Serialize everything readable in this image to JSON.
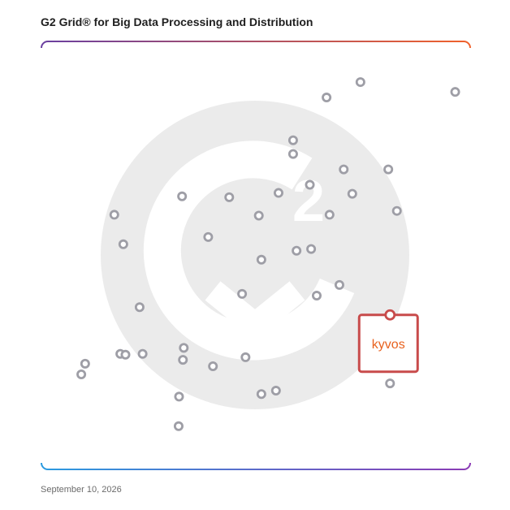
{
  "header": {
    "title": "G2 Grid® for Big Data Processing and Distribution"
  },
  "footer": {
    "date": "September 10, 2026"
  },
  "colors": {
    "frame_top_left": "#6a3fa0",
    "frame_top_right": "#f0612b",
    "frame_bottom_left": "#2b9be0",
    "frame_bottom_right": "#8b3bb5",
    "watermark": "#ebebeb",
    "dot": "#9e9ea6",
    "highlight": "#c84b4b",
    "highlight_text": "#e8621f"
  },
  "highlight": {
    "label": "kyvos"
  },
  "chart_data": {
    "type": "scatter",
    "title": "G2 Grid® for Big Data Processing and Distribution",
    "xlabel": "",
    "ylabel": "",
    "xlim": [
      0,
      100
    ],
    "ylim": [
      0,
      100
    ],
    "grid": false,
    "quadrant_divider": {
      "x": 50,
      "y": 50
    },
    "series": [
      {
        "points": [
          {
            "x": 66.5,
            "y": 86.9
          },
          {
            "x": 74.4,
            "y": 90.5
          },
          {
            "x": 96.5,
            "y": 88.2
          },
          {
            "x": 58.7,
            "y": 76.9
          },
          {
            "x": 58.7,
            "y": 73.7
          },
          {
            "x": 70.5,
            "y": 70.1
          },
          {
            "x": 80.9,
            "y": 70.1
          },
          {
            "x": 62.6,
            "y": 66.5
          },
          {
            "x": 55.3,
            "y": 64.6
          },
          {
            "x": 72.5,
            "y": 64.4
          },
          {
            "x": 82.9,
            "y": 60.4
          },
          {
            "x": 67.2,
            "y": 59.5
          },
          {
            "x": 50.7,
            "y": 59.3
          },
          {
            "x": 32.8,
            "y": 63.8
          },
          {
            "x": 43.8,
            "y": 63.6
          },
          {
            "x": 17.0,
            "y": 59.5
          },
          {
            "x": 19.1,
            "y": 52.6
          },
          {
            "x": 38.9,
            "y": 54.3
          },
          {
            "x": 62.9,
            "y": 51.5
          },
          {
            "x": 59.5,
            "y": 51.1
          },
          {
            "x": 51.3,
            "y": 49.0
          },
          {
            "x": 46.8,
            "y": 41.0
          },
          {
            "x": 64.2,
            "y": 40.6
          },
          {
            "x": 69.5,
            "y": 43.1
          },
          {
            "x": 22.9,
            "y": 37.9
          },
          {
            "x": 18.4,
            "y": 27.0
          },
          {
            "x": 19.6,
            "y": 26.8
          },
          {
            "x": 23.6,
            "y": 27.0
          },
          {
            "x": 33.2,
            "y": 28.4
          },
          {
            "x": 33.0,
            "y": 25.6
          },
          {
            "x": 40.0,
            "y": 24.1
          },
          {
            "x": 47.6,
            "y": 26.2
          },
          {
            "x": 10.2,
            "y": 24.7
          },
          {
            "x": 9.3,
            "y": 22.2
          },
          {
            "x": 32.1,
            "y": 17.0
          },
          {
            "x": 32.0,
            "y": 10.1
          },
          {
            "x": 51.3,
            "y": 17.6
          },
          {
            "x": 54.7,
            "y": 18.4
          },
          {
            "x": 81.3,
            "y": 20.1
          }
        ]
      }
    ],
    "highlight_point": {
      "label": "kyvos",
      "x": 81.3,
      "y": 36.1
    }
  }
}
